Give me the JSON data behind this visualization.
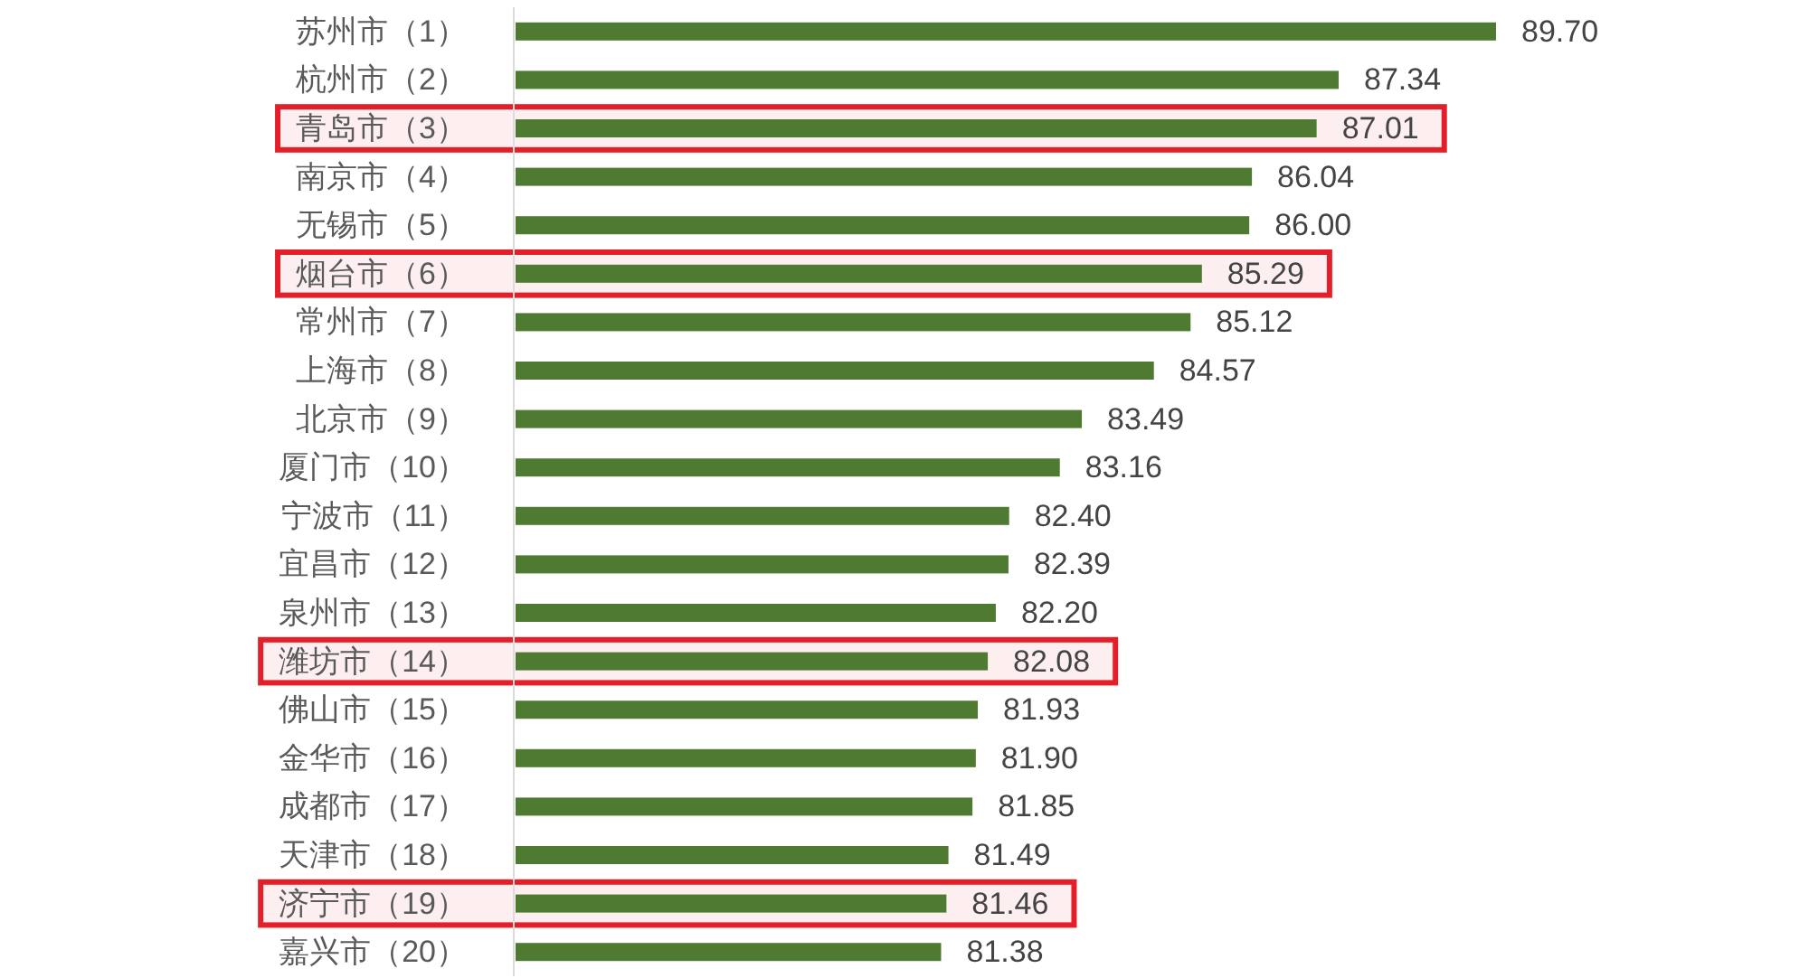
{
  "chart_data": {
    "type": "bar",
    "orientation": "horizontal",
    "categories": [
      "苏州市（1）",
      "杭州市（2）",
      "青岛市（3）",
      "南京市（4）",
      "无锡市（5）",
      "烟台市（6）",
      "常州市（7）",
      "上海市（8）",
      "北京市（9）",
      "厦门市（10）",
      "宁波市（11）",
      "宜昌市（12）",
      "泉州市（13）",
      "潍坊市（14）",
      "佛山市（15）",
      "金华市（16）",
      "成都市（17）",
      "天津市（18）",
      "济宁市（19）",
      "嘉兴市（20）"
    ],
    "values": [
      89.7,
      87.34,
      87.01,
      86.04,
      86.0,
      85.29,
      85.12,
      84.57,
      83.49,
      83.16,
      82.4,
      82.39,
      82.2,
      82.08,
      81.93,
      81.9,
      81.85,
      81.49,
      81.46,
      81.38
    ],
    "value_labels": [
      "89.70",
      "87.34",
      "87.01",
      "86.04",
      "86.00",
      "85.29",
      "85.12",
      "84.57",
      "83.49",
      "83.16",
      "82.40",
      "82.39",
      "82.20",
      "82.08",
      "81.93",
      "81.90",
      "81.85",
      "81.49",
      "81.46",
      "81.38"
    ],
    "color": "#4f7a31",
    "xlim": [
      75,
      89.7
    ],
    "tick_labels": "y",
    "bands": [
      {
        "axis": "y",
        "from": "青岛市（3）",
        "to": "青岛市（3）",
        "color": "#e3202a"
      },
      {
        "axis": "y",
        "from": "烟台市（6）",
        "to": "烟台市（6）",
        "color": "#e3202a"
      },
      {
        "axis": "y",
        "from": "潍坊市（14）",
        "to": "潍坊市（14）",
        "color": "#e3202a"
      },
      {
        "axis": "y",
        "from": "济宁市（19）",
        "to": "济宁市（19）",
        "color": "#e3202a"
      }
    ]
  }
}
